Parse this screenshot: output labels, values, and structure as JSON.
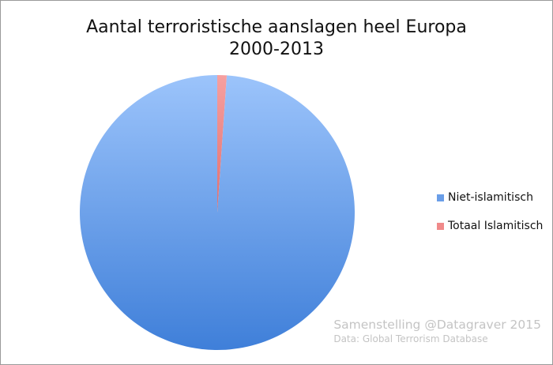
{
  "chart_data": {
    "type": "pie",
    "title": "Aantal terroristische aanslagen heel Europa",
    "subtitle": "2000-2013",
    "categories": [
      "Niet-islamitisch",
      "Totaal Islamitisch"
    ],
    "values": [
      98.9,
      1.1
    ],
    "colors": [
      "#6a9ee8",
      "#f08a8a"
    ],
    "legend_position": "right"
  },
  "credit": {
    "line1": "Samenstelling @Datagraver 2015",
    "line2": "Data: Global Terrorism Database"
  }
}
